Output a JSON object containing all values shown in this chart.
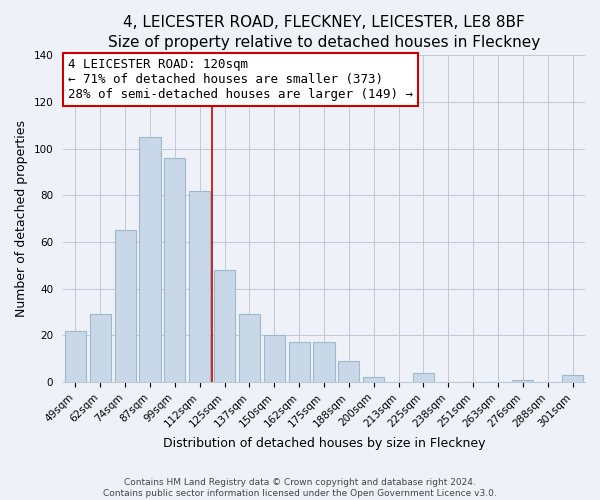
{
  "title": "4, LEICESTER ROAD, FLECKNEY, LEICESTER, LE8 8BF",
  "subtitle": "Size of property relative to detached houses in Fleckney",
  "xlabel": "Distribution of detached houses by size in Fleckney",
  "ylabel": "Number of detached properties",
  "bar_labels": [
    "49sqm",
    "62sqm",
    "74sqm",
    "87sqm",
    "99sqm",
    "112sqm",
    "125sqm",
    "137sqm",
    "150sqm",
    "162sqm",
    "175sqm",
    "188sqm",
    "200sqm",
    "213sqm",
    "225sqm",
    "238sqm",
    "251sqm",
    "263sqm",
    "276sqm",
    "288sqm",
    "301sqm"
  ],
  "bar_values": [
    22,
    29,
    65,
    105,
    96,
    82,
    48,
    29,
    20,
    17,
    17,
    9,
    2,
    0,
    4,
    0,
    0,
    0,
    1,
    0,
    3
  ],
  "bar_color": "#c8d8e8",
  "bar_edge_color": "#a0b8cc",
  "annotation_title": "4 LEICESTER ROAD: 120sqm",
  "annotation_line1": "← 71% of detached houses are smaller (373)",
  "annotation_line2": "28% of semi-detached houses are larger (149) →",
  "annotation_box_facecolor": "#ffffff",
  "annotation_box_edgecolor": "#cc0000",
  "vline_color": "#cc0000",
  "vline_x": 5.5,
  "ylim": [
    0,
    140
  ],
  "background_color": "#eef2f8",
  "plot_background": "#eef2f8",
  "grid_color": "#c0c8d8",
  "footer1": "Contains HM Land Registry data © Crown copyright and database right 2024.",
  "footer2": "Contains public sector information licensed under the Open Government Licence v3.0.",
  "title_fontsize": 11,
  "subtitle_fontsize": 10,
  "ylabel_fontsize": 9,
  "xlabel_fontsize": 9,
  "tick_fontsize": 7.5,
  "annot_fontsize": 9,
  "footer_fontsize": 6.5
}
